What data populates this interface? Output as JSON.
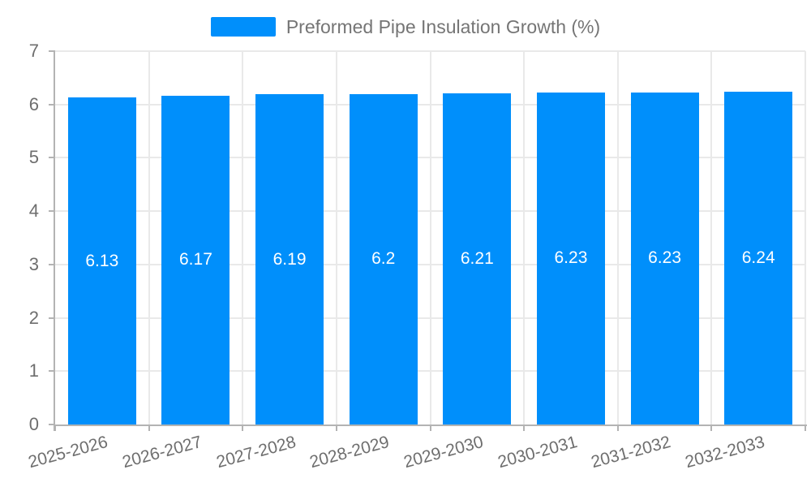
{
  "legend": {
    "label": "Preformed Pipe Insulation Growth (%)"
  },
  "chart_data": {
    "type": "bar",
    "title": "Preformed Pipe Insulation Growth (%)",
    "categories": [
      "2025-2026",
      "2026-2027",
      "2027-2028",
      "2028-2029",
      "2029-2030",
      "2030-2031",
      "2031-2032",
      "2032-2033"
    ],
    "values": [
      6.13,
      6.17,
      6.19,
      6.2,
      6.21,
      6.23,
      6.23,
      6.24
    ],
    "value_labels": [
      "6.13",
      "6.17",
      "6.19",
      "6.2",
      "6.21",
      "6.23",
      "6.23",
      "6.24"
    ],
    "yticks": [
      "0",
      "1",
      "2",
      "3",
      "4",
      "5",
      "6",
      "7"
    ],
    "ylim": [
      0,
      7
    ],
    "xlabel": "",
    "ylabel": "",
    "grid": true,
    "legend_position": "top",
    "bar_color": "#008FFB",
    "value_label_color": "#ffffff",
    "axis_text_color": "#6e6e6e",
    "gridline_color": "#e9e9e9",
    "axis_line_color": "#b3b3b3"
  }
}
